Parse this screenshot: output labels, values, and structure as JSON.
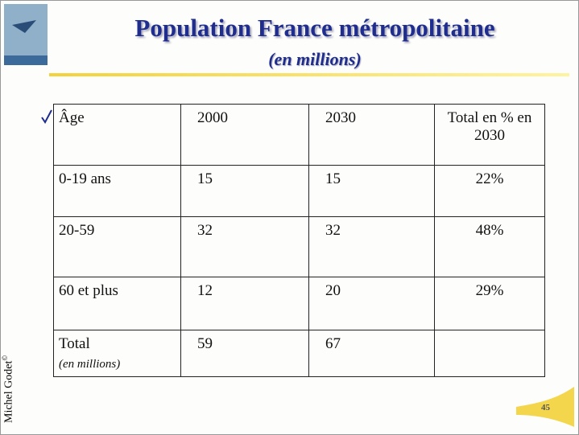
{
  "slide": {
    "title": "Population France métropolitaine",
    "subtitle": "(en millions)",
    "author": "Michel Godet",
    "copyright": "©",
    "page": "45"
  },
  "table": {
    "header": [
      "Âge",
      "2000",
      "2030",
      "Total en % en 2030"
    ],
    "rows": [
      [
        "0-19 ans",
        "15",
        "15",
        "22%"
      ],
      [
        "20-59",
        "32",
        "32",
        "48%"
      ],
      [
        "60 et plus",
        "12",
        "20",
        "29%"
      ]
    ],
    "total": {
      "label": "Total",
      "note": "(en millions)",
      "y2000": "59",
      "y2030": "67"
    }
  }
}
